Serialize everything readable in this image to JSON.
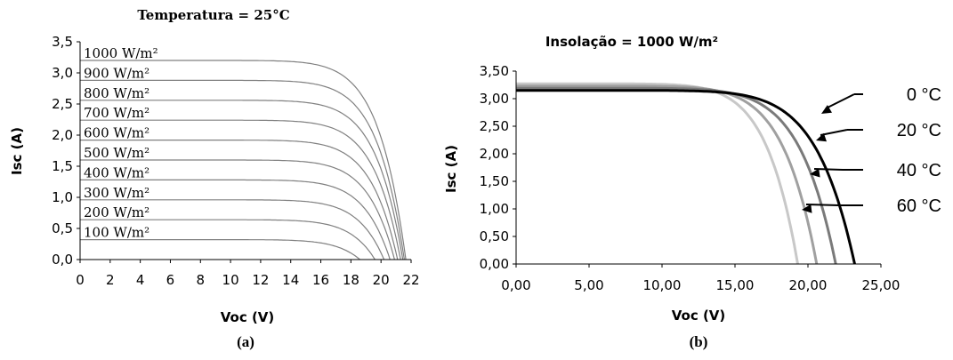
{
  "chart_data": [
    {
      "type": "line",
      "panel_label": "(a)",
      "title": "Temperatura = 25°C",
      "xlabel": "Voc (V)",
      "ylabel": "Isc (A)",
      "xlim": [
        0,
        22
      ],
      "ylim": [
        0,
        3.5
      ],
      "x_ticks": [
        "0",
        "2",
        "4",
        "6",
        "8",
        "10",
        "12",
        "14",
        "16",
        "18",
        "20",
        "22"
      ],
      "y_ticks": [
        "0,0",
        "0,5",
        "1,0",
        "1,5",
        "2,0",
        "2,5",
        "3,0",
        "3,5"
      ],
      "grid": false,
      "series": [
        {
          "name": "100 W/m²",
          "isc": 0.32,
          "voc": 18.6,
          "color": "#808080"
        },
        {
          "name": "200 W/m²",
          "isc": 0.64,
          "voc": 19.6,
          "color": "#808080"
        },
        {
          "name": "300 W/m²",
          "isc": 0.96,
          "voc": 20.2,
          "color": "#808080"
        },
        {
          "name": "400 W/m²",
          "isc": 1.28,
          "voc": 20.6,
          "color": "#808080"
        },
        {
          "name": "500 W/m²",
          "isc": 1.6,
          "voc": 20.9,
          "color": "#808080"
        },
        {
          "name": "600 W/m²",
          "isc": 1.92,
          "voc": 21.1,
          "color": "#808080"
        },
        {
          "name": "700 W/m²",
          "isc": 2.24,
          "voc": 21.3,
          "color": "#808080"
        },
        {
          "name": "800 W/m²",
          "isc": 2.56,
          "voc": 21.45,
          "color": "#808080"
        },
        {
          "name": "900 W/m²",
          "isc": 2.88,
          "voc": 21.55,
          "color": "#808080"
        },
        {
          "name": "1000 W/m²",
          "isc": 3.2,
          "voc": 21.65,
          "color": "#808080"
        }
      ]
    },
    {
      "type": "line",
      "panel_label": "(b)",
      "title": "Insolação = 1000 W/m²",
      "xlabel": "Voc (V)",
      "ylabel": "Isc (A)",
      "xlim": [
        0,
        25
      ],
      "ylim": [
        0,
        3.5
      ],
      "x_ticks": [
        "0,00",
        "5,00",
        "10,00",
        "15,00",
        "20,00",
        "25,00"
      ],
      "y_ticks": [
        "0,00",
        "0,50",
        "1,00",
        "1,50",
        "2,00",
        "2,50",
        "3,00",
        "3,50"
      ],
      "grid": false,
      "series": [
        {
          "name": "0 °C",
          "isc": 3.15,
          "voc": 23.2,
          "color": "#000000"
        },
        {
          "name": "20 °C",
          "isc": 3.19,
          "voc": 21.9,
          "color": "#7a7a7a"
        },
        {
          "name": "40 °C",
          "isc": 3.23,
          "voc": 20.6,
          "color": "#a0a0a0"
        },
        {
          "name": "60 °C",
          "isc": 3.27,
          "voc": 19.3,
          "color": "#c8c8c8"
        }
      ]
    }
  ]
}
